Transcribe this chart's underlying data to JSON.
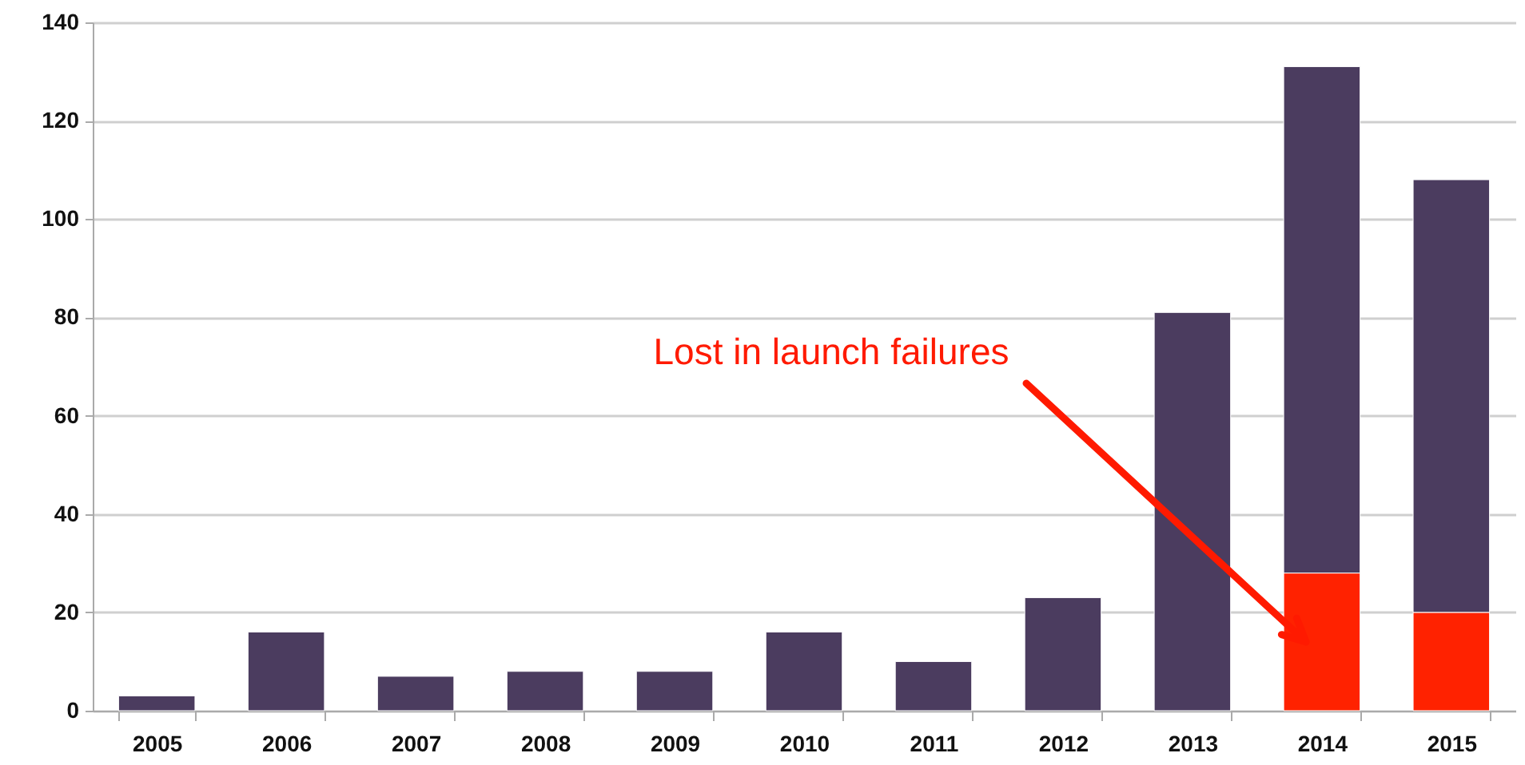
{
  "chart_data": {
    "type": "bar",
    "stacked": true,
    "categories": [
      "2005",
      "2006",
      "2007",
      "2008",
      "2009",
      "2010",
      "2011",
      "2012",
      "2013",
      "2014",
      "2015"
    ],
    "series": [
      {
        "color": "#ff2200",
        "values": [
          null,
          null,
          null,
          null,
          null,
          null,
          null,
          null,
          null,
          28,
          20
        ]
      },
      {
        "color": "#4b3c5f",
        "values": [
          3,
          16,
          7,
          8,
          8,
          16,
          10,
          23,
          81,
          103,
          88
        ]
      }
    ],
    "ylim": [
      0,
      140
    ],
    "yticks": [
      0,
      20,
      40,
      60,
      80,
      100,
      120,
      140
    ],
    "grid": "y",
    "annotations": [
      "Lost in launch failures"
    ]
  }
}
